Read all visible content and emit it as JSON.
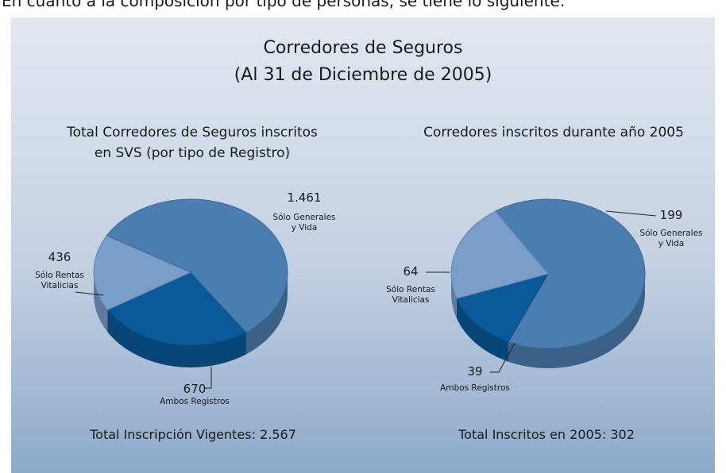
{
  "intro": "En cuanto a la composición por tipo de personas, se tiene lo siguiente:",
  "title": [
    "Corredores de Seguros",
    "(Al 31 de Diciembre de 2005)"
  ],
  "chart_data": [
    {
      "type": "pie",
      "title": "Total Corredores de Seguros inscritos en SVS (por tipo de Registro)",
      "categories": [
        "Sólo Generales y Vida",
        "Sólo Rentas Vitalicias",
        "Ambos Registros"
      ],
      "values": [
        1461,
        436,
        670
      ],
      "value_labels": [
        "1.461",
        "436",
        "670"
      ],
      "colors": [
        "#4a7db0",
        "#7b9dc9",
        "#0a5a9a"
      ],
      "total_label": "Total Inscripción Vigentes: 2.567"
    },
    {
      "type": "pie",
      "title": "Corredores inscritos durante año 2005",
      "categories": [
        "Sólo Generales y Vida",
        "Sólo Rentas Vitalicias",
        "Ambos Registros"
      ],
      "values": [
        199,
        64,
        39
      ],
      "value_labels": [
        "199",
        "64",
        "39"
      ],
      "colors": [
        "#4a7db0",
        "#7b9dc9",
        "#0a5a9a"
      ],
      "total_label": "Total Inscritos en 2005: 302"
    }
  ]
}
